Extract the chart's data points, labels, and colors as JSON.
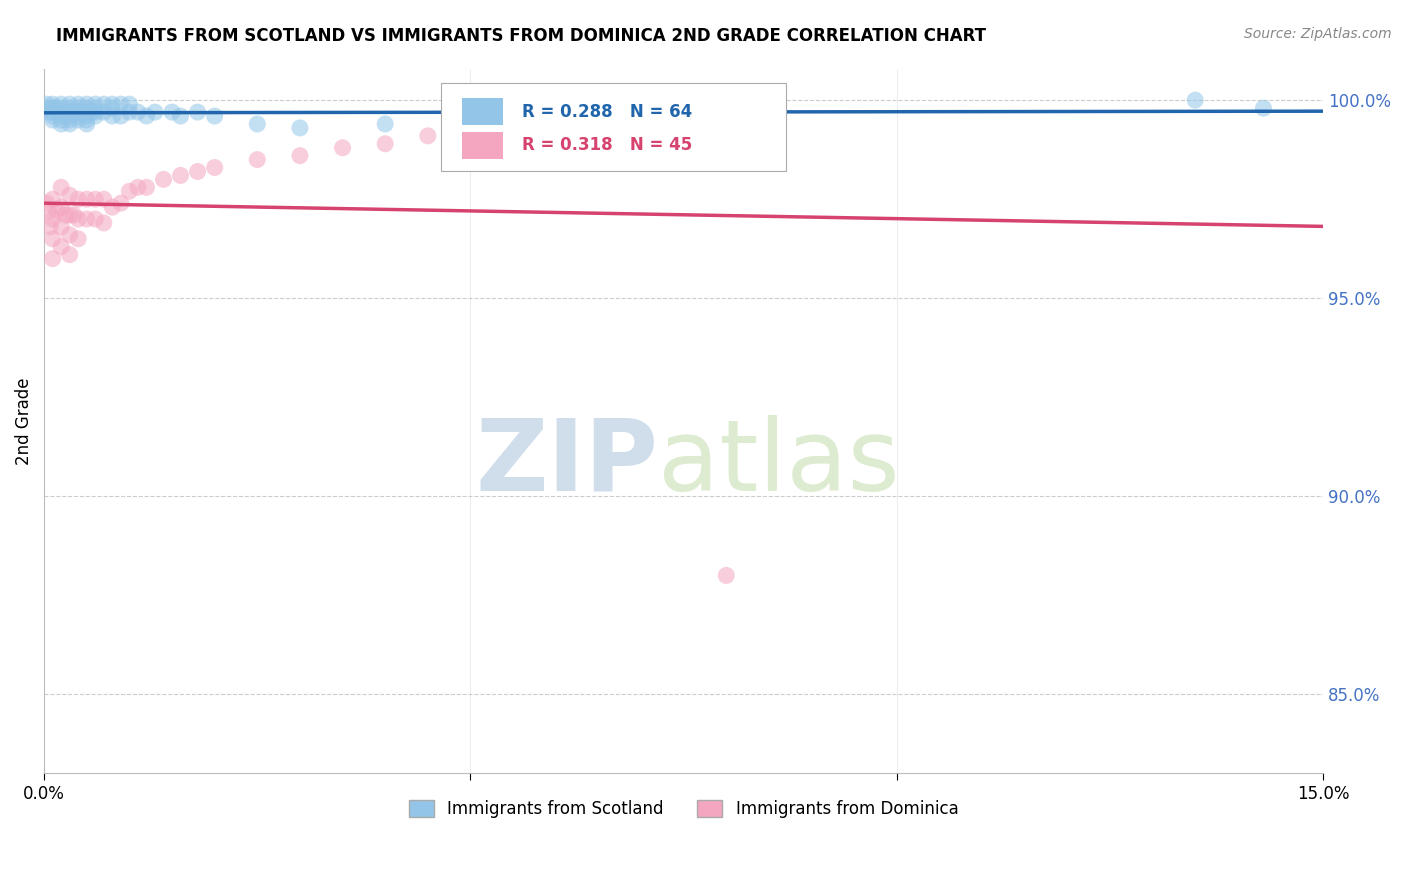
{
  "title": "IMMIGRANTS FROM SCOTLAND VS IMMIGRANTS FROM DOMINICA 2ND GRADE CORRELATION CHART",
  "source": "Source: ZipAtlas.com",
  "ylabel": "2nd Grade",
  "xlim": [
    0.0,
    0.15
  ],
  "ylim": [
    0.83,
    1.008
  ],
  "yticks": [
    0.85,
    0.9,
    0.95,
    1.0
  ],
  "ytick_labels": [
    "85.0%",
    "90.0%",
    "95.0%",
    "100.0%"
  ],
  "R_scotland": 0.288,
  "N_scotland": 64,
  "R_dominica": 0.318,
  "N_dominica": 45,
  "scotland_color": "#92c5e8",
  "dominica_color": "#f4a6c0",
  "scotland_line_color": "#2166ac",
  "dominica_line_color": "#d6436e",
  "watermark_zip": "ZIP",
  "watermark_atlas": "atlas",
  "scotland_x": [
    0.0003,
    0.0005,
    0.0007,
    0.001,
    0.001,
    0.001,
    0.001,
    0.001,
    0.0015,
    0.002,
    0.002,
    0.002,
    0.002,
    0.002,
    0.002,
    0.0025,
    0.003,
    0.003,
    0.003,
    0.003,
    0.003,
    0.003,
    0.0035,
    0.004,
    0.004,
    0.004,
    0.004,
    0.004,
    0.005,
    0.005,
    0.005,
    0.005,
    0.005,
    0.005,
    0.0055,
    0.006,
    0.006,
    0.006,
    0.006,
    0.007,
    0.007,
    0.008,
    0.008,
    0.008,
    0.009,
    0.009,
    0.01,
    0.01,
    0.011,
    0.012,
    0.013,
    0.015,
    0.016,
    0.018,
    0.02,
    0.025,
    0.03,
    0.04,
    0.05,
    0.06,
    0.07,
    0.08,
    0.135,
    0.143
  ],
  "scotland_y": [
    0.999,
    0.998,
    0.997,
    0.999,
    0.998,
    0.997,
    0.996,
    0.995,
    0.998,
    0.999,
    0.998,
    0.997,
    0.996,
    0.995,
    0.994,
    0.997,
    0.999,
    0.998,
    0.997,
    0.996,
    0.995,
    0.994,
    0.997,
    0.999,
    0.998,
    0.997,
    0.996,
    0.995,
    0.999,
    0.998,
    0.997,
    0.996,
    0.995,
    0.994,
    0.997,
    0.999,
    0.998,
    0.997,
    0.996,
    0.999,
    0.997,
    0.999,
    0.998,
    0.996,
    0.999,
    0.996,
    0.999,
    0.997,
    0.997,
    0.996,
    0.997,
    0.997,
    0.996,
    0.997,
    0.996,
    0.994,
    0.993,
    0.994,
    0.995,
    0.996,
    0.996,
    0.997,
    1.0,
    0.998
  ],
  "dominica_x": [
    0.0003,
    0.0005,
    0.0007,
    0.001,
    0.001,
    0.001,
    0.001,
    0.0015,
    0.002,
    0.002,
    0.002,
    0.002,
    0.0025,
    0.003,
    0.003,
    0.003,
    0.003,
    0.0035,
    0.004,
    0.004,
    0.004,
    0.005,
    0.005,
    0.006,
    0.006,
    0.007,
    0.007,
    0.008,
    0.009,
    0.01,
    0.011,
    0.012,
    0.014,
    0.016,
    0.018,
    0.02,
    0.025,
    0.03,
    0.035,
    0.04,
    0.045,
    0.05,
    0.06,
    0.07,
    0.08
  ],
  "dominica_y": [
    0.974,
    0.972,
    0.968,
    0.975,
    0.97,
    0.965,
    0.96,
    0.972,
    0.978,
    0.973,
    0.968,
    0.963,
    0.971,
    0.976,
    0.971,
    0.966,
    0.961,
    0.971,
    0.975,
    0.97,
    0.965,
    0.975,
    0.97,
    0.975,
    0.97,
    0.975,
    0.969,
    0.973,
    0.974,
    0.977,
    0.978,
    0.978,
    0.98,
    0.981,
    0.982,
    0.983,
    0.985,
    0.986,
    0.988,
    0.989,
    0.991,
    0.992,
    0.994,
    0.996,
    0.88
  ]
}
